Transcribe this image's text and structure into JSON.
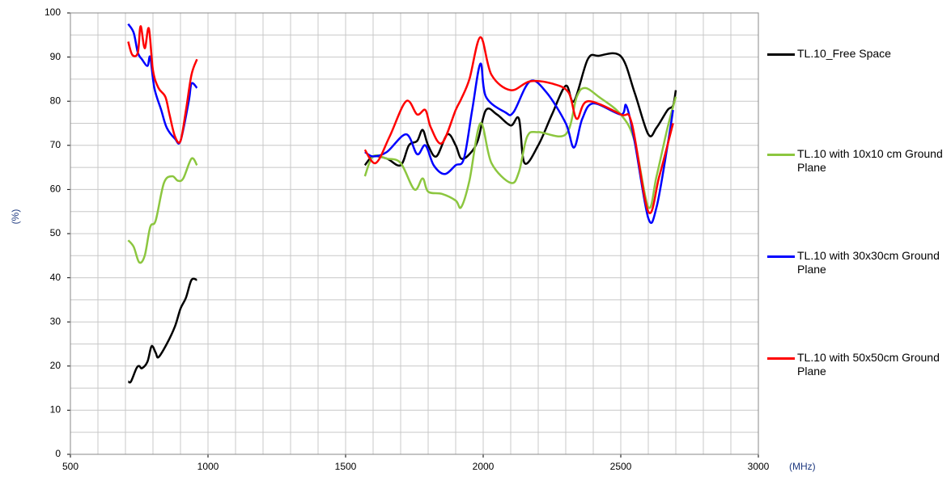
{
  "chart_data": {
    "type": "line",
    "y_label": "(%)",
    "x_label": "(MHz)",
    "xlim": [
      500,
      3000
    ],
    "xticks": [
      500,
      1000,
      1500,
      2000,
      2500,
      3000
    ],
    "ylim": [
      0,
      100
    ],
    "yticks": [
      0,
      10,
      20,
      30,
      40,
      50,
      60,
      70,
      80,
      90,
      100
    ],
    "grid": true,
    "legend": "right",
    "series": [
      {
        "name": "TL.10_Free Space",
        "color": "#000000",
        "x": [
          710,
          720,
          740,
          750,
          760,
          780,
          795,
          810,
          820,
          850,
          880,
          900,
          920,
          940,
          960,
          null,
          1570,
          1600,
          1650,
          1700,
          1730,
          1760,
          1780,
          1800,
          1830,
          1870,
          1900,
          1920,
          1950,
          1980,
          2010,
          2050,
          2100,
          2130,
          2150,
          2200,
          2250,
          2300,
          2330,
          2380,
          2420,
          2500,
          2550,
          2600,
          2630,
          2670,
          2690,
          2700
        ],
        "values": [
          16.5,
          16.5,
          19.5,
          20,
          19.5,
          21,
          24.5,
          23,
          22,
          25,
          29,
          33,
          35.5,
          39.5,
          39.5,
          null,
          65.5,
          67.5,
          67,
          65.5,
          70,
          71,
          73.5,
          70,
          67.5,
          72.5,
          70,
          67,
          68,
          71,
          78,
          77,
          74.5,
          76,
          66,
          70,
          77,
          83.5,
          80,
          89.5,
          90.3,
          90.2,
          82,
          72.5,
          74,
          78,
          79,
          82.5
        ]
      },
      {
        "name": "TL.10 with 10x10 cm Ground Plane",
        "color": "#8cc63f",
        "x": [
          710,
          730,
          750,
          770,
          790,
          810,
          840,
          870,
          890,
          910,
          940,
          960,
          null,
          1570,
          1600,
          1650,
          1700,
          1750,
          1780,
          1800,
          1850,
          1900,
          1920,
          1950,
          1990,
          2030,
          2100,
          2130,
          2160,
          2200,
          2300,
          2340,
          2370,
          2420,
          2500,
          2550,
          2600,
          2630,
          2670,
          2700
        ],
        "values": [
          48.5,
          47,
          43.5,
          45,
          51.5,
          53,
          61.5,
          63,
          62,
          62.5,
          67,
          65.5,
          null,
          63,
          67.5,
          67,
          66,
          60,
          62.5,
          59.5,
          59,
          57.5,
          56,
          62,
          75,
          66,
          61.5,
          64,
          72,
          73,
          72.5,
          81,
          83,
          81,
          77,
          71,
          56,
          63,
          74,
          81
        ]
      },
      {
        "name": "TL.10 with 30x30cm Ground Plane",
        "color": "#0000ff",
        "x": [
          710,
          730,
          745,
          760,
          780,
          790,
          805,
          830,
          850,
          880,
          900,
          930,
          940,
          960,
          null,
          1570,
          1600,
          1650,
          1720,
          1760,
          1790,
          1820,
          1860,
          1900,
          1930,
          1960,
          1990,
          2010,
          2080,
          2110,
          2170,
          2230,
          2300,
          2330,
          2360,
          2400,
          2500,
          2520,
          2550,
          2600,
          2630,
          2670,
          2690
        ],
        "values": [
          97.5,
          95.5,
          91,
          89.5,
          88,
          90,
          83,
          78,
          74,
          71.5,
          71,
          80,
          84,
          83,
          null,
          68.5,
          67.5,
          68.5,
          72.5,
          68,
          70,
          65.5,
          63.5,
          65.5,
          67,
          78,
          88.5,
          81,
          77.5,
          77.5,
          84.5,
          82,
          75,
          69.5,
          76,
          79.5,
          77,
          79,
          71,
          53.5,
          56,
          70,
          78
        ]
      },
      {
        "name": "TL.10 with 50x50cm Ground Plane",
        "color": "#ff0000",
        "x": [
          710,
          725,
          745,
          755,
          770,
          785,
          800,
          820,
          845,
          860,
          880,
          900,
          920,
          940,
          960,
          null,
          1570,
          1610,
          1660,
          1720,
          1760,
          1790,
          1810,
          1850,
          1900,
          1920,
          1950,
          1990,
          2030,
          2100,
          2170,
          2250,
          2310,
          2340,
          2380,
          2500,
          2540,
          2600,
          2640,
          2690
        ],
        "values": [
          93.5,
          90.5,
          91,
          97,
          92,
          96.5,
          87,
          83,
          81,
          77,
          72,
          71,
          78,
          86,
          89.5,
          null,
          69,
          66,
          72,
          80,
          77,
          78,
          74,
          70.5,
          78,
          80.5,
          85,
          94.5,
          86,
          82.5,
          84.5,
          84,
          82,
          76,
          80,
          77,
          75,
          55,
          63,
          75
        ]
      }
    ]
  }
}
